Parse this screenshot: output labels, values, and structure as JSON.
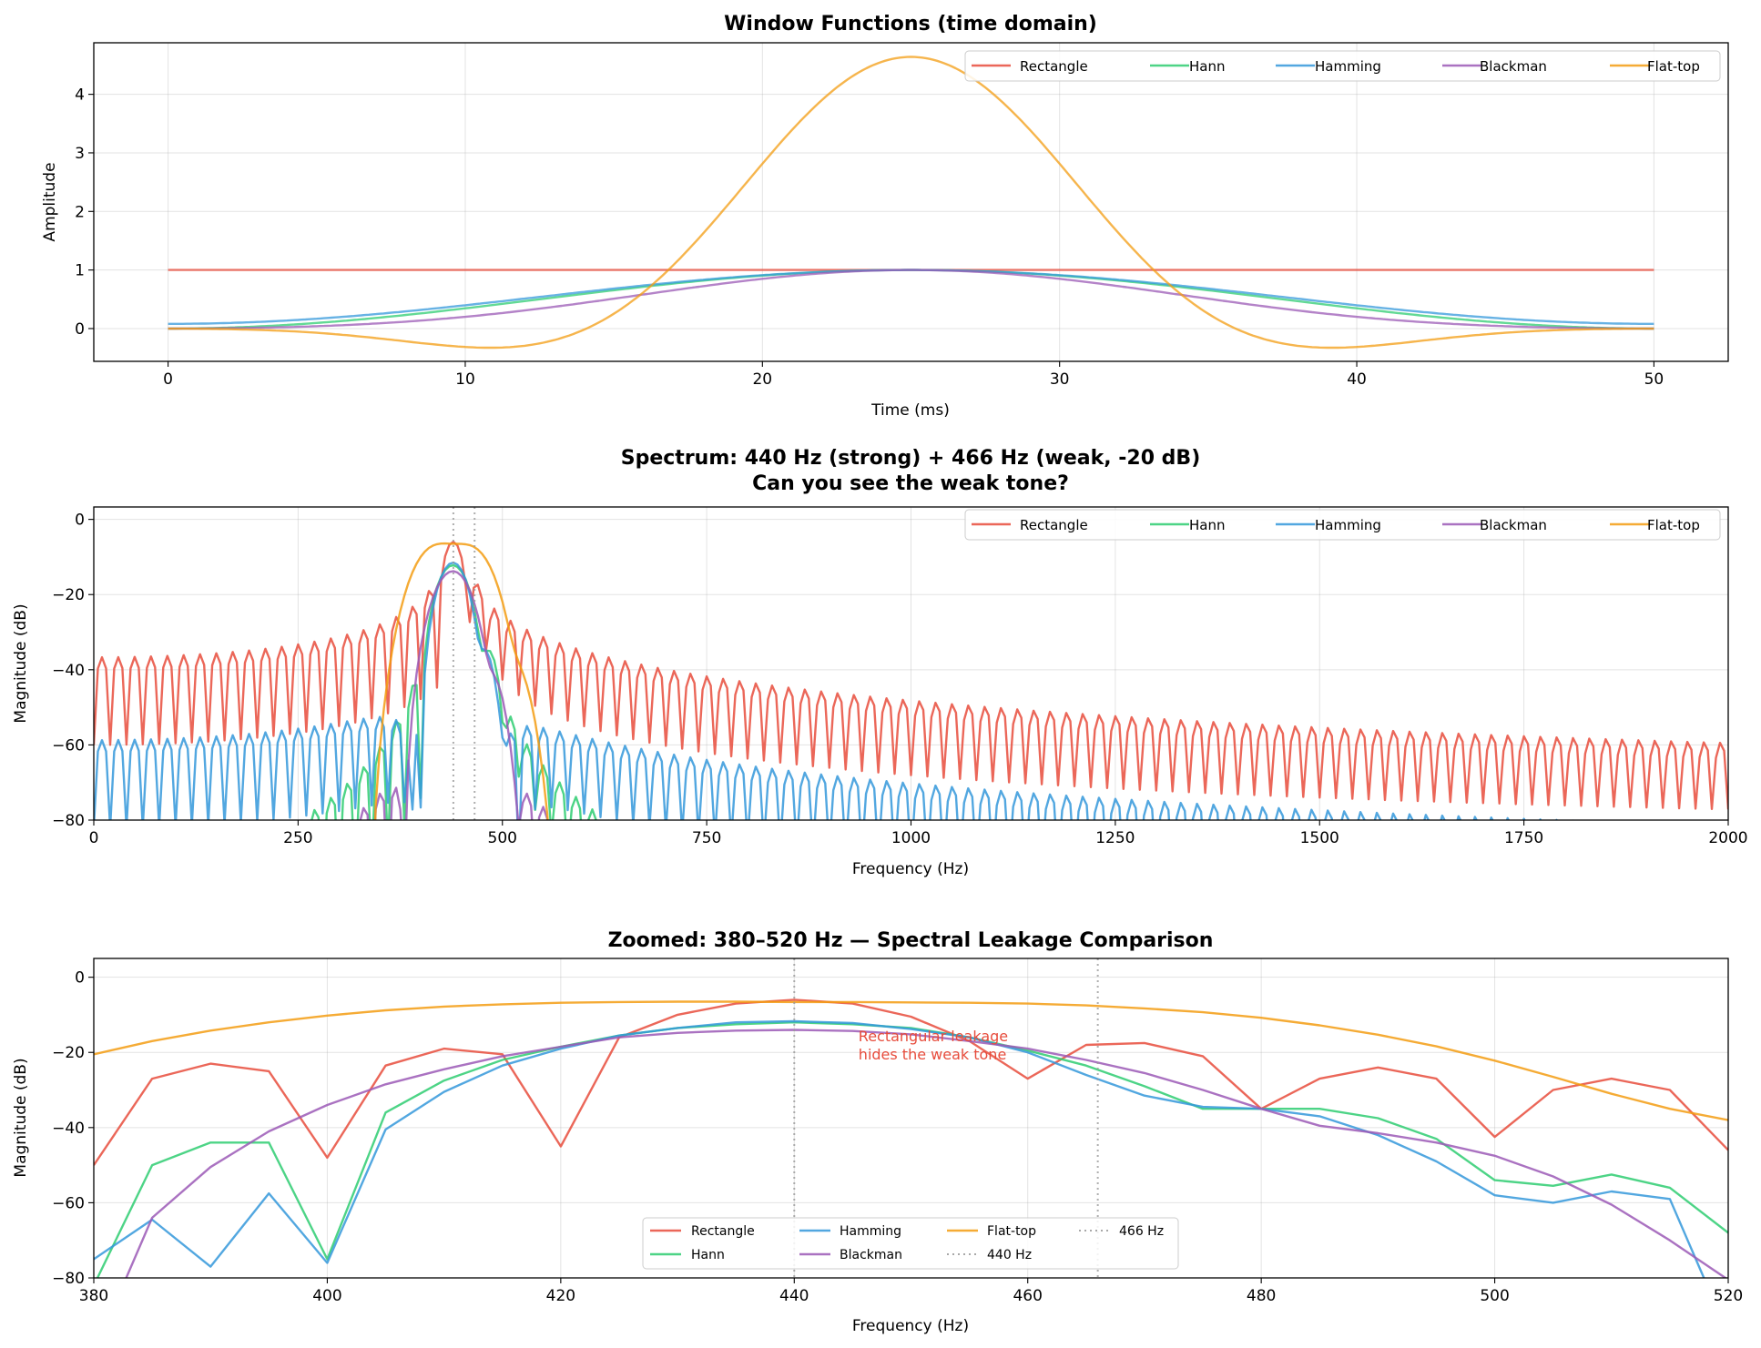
{
  "colors": {
    "Rectangle": "#e74c3c",
    "Hann": "#2ecc71",
    "Hamming": "#3498db",
    "Blackman": "#9b59b6",
    "Flat-top": "#f39c12",
    "marker_lines": "#999999"
  },
  "chart_data": [
    {
      "type": "line",
      "title": "Window Functions (time domain)",
      "xlabel": "Time (ms)",
      "ylabel": "Amplitude",
      "xlim": [
        -2.5,
        52.5
      ],
      "ylim": [
        -0.56,
        4.88
      ],
      "xticks": [
        0,
        10,
        20,
        30,
        40,
        50
      ],
      "xtick_labels": [
        "0",
        "10",
        "20",
        "30",
        "40",
        "50"
      ],
      "yticks": [
        0,
        1,
        2,
        3,
        4
      ],
      "ytick_labels": [
        "0",
        "1",
        "2",
        "3",
        "4"
      ],
      "grid": true,
      "legend": "top-right",
      "x": [
        0,
        5,
        10,
        15,
        20,
        25,
        30,
        35,
        40,
        45,
        50
      ],
      "series": [
        {
          "name": "Rectangle",
          "values": [
            1,
            1,
            1,
            1,
            1,
            1,
            1,
            1,
            1,
            1,
            1
          ]
        },
        {
          "name": "Hann",
          "values": [
            0,
            0.0955,
            0.3455,
            0.6545,
            0.9045,
            1,
            0.9045,
            0.6545,
            0.3455,
            0.0955,
            0
          ]
        },
        {
          "name": "Hamming",
          "values": [
            0.08,
            0.1679,
            0.3979,
            0.6821,
            0.9121,
            1,
            0.9121,
            0.6821,
            0.3979,
            0.1679,
            0.08
          ]
        },
        {
          "name": "Blackman",
          "values": [
            0,
            0.0402,
            0.2008,
            0.5098,
            0.8492,
            1,
            0.8492,
            0.5098,
            0.2008,
            0.0402,
            0
          ]
        },
        {
          "name": "Flat-top",
          "values": [
            -0.002,
            -0.0723,
            -0.3141,
            0.253,
            2.8151,
            4.6387,
            2.8151,
            0.253,
            -0.3141,
            -0.0723,
            -0.002
          ]
        }
      ]
    },
    {
      "type": "line",
      "title": "Spectrum: 440 Hz (strong) + 466 Hz (weak, -20 dB)",
      "subtitle": "Can you see the weak tone?",
      "xlabel": "Frequency (Hz)",
      "ylabel": "Magnitude (dB)",
      "xlim": [
        0,
        2000
      ],
      "ylim": [
        -80,
        3.3
      ],
      "xticks": [
        0,
        250,
        500,
        750,
        1000,
        1250,
        1500,
        1750,
        2000
      ],
      "xtick_labels": [
        "0",
        "250",
        "500",
        "750",
        "1000",
        "1250",
        "1500",
        "1750",
        "2000"
      ],
      "yticks": [
        -80,
        -60,
        -40,
        -20,
        0
      ],
      "ytick_labels": [
        "−80",
        "−60",
        "−40",
        "−20",
        "0"
      ],
      "grid": true,
      "legend": "top-right",
      "signal": {
        "tones_hz": [
          440,
          466
        ],
        "relative_level_db": [
          0,
          -20
        ]
      },
      "vlines_hz": [
        440,
        466
      ],
      "series_names": [
        "Rectangle",
        "Hann",
        "Hamming",
        "Blackman",
        "Flat-top"
      ]
    },
    {
      "type": "line",
      "title": "Zoomed: 380–520 Hz — Spectral Leakage Comparison",
      "xlabel": "Frequency (Hz)",
      "ylabel": "Magnitude (dB)",
      "xlim": [
        380,
        520
      ],
      "ylim": [
        -80,
        5
      ],
      "xticks": [
        380,
        400,
        420,
        440,
        460,
        480,
        500,
        520
      ],
      "xtick_labels": [
        "380",
        "400",
        "420",
        "440",
        "460",
        "480",
        "500",
        "520"
      ],
      "yticks": [
        -80,
        -60,
        -40,
        -20,
        0
      ],
      "ytick_labels": [
        "−80",
        "−60",
        "−40",
        "−20",
        "0"
      ],
      "grid": true,
      "legend": "bottom-center",
      "legend_labels": [
        "Rectangle",
        "Hann",
        "Hamming",
        "Blackman",
        "Flat-top",
        "440 Hz",
        "466 Hz"
      ],
      "annotation": {
        "lines": [
          "Rectangular leakage",
          "hides the weak tone"
        ],
        "x": 445.5,
        "y": -17
      },
      "vlines_hz": [
        440,
        466
      ],
      "x": [
        380,
        385,
        390,
        395,
        400,
        405,
        410,
        415,
        420,
        425,
        430,
        435,
        440,
        445,
        450,
        455,
        460,
        465,
        470,
        475,
        480,
        485,
        490,
        495,
        500,
        505,
        510,
        515,
        520
      ],
      "series": [
        {
          "name": "Rectangle",
          "values": [
            -50,
            -27,
            -23,
            -25,
            -48,
            -23.5,
            -19,
            -20.5,
            -45,
            -16,
            -10,
            -7,
            -6,
            -7,
            -10.5,
            -17,
            -27,
            -18,
            -17.5,
            -21,
            -35,
            -27,
            -24,
            -27,
            -42.5,
            -30,
            -27,
            -30,
            -46
          ]
        },
        {
          "name": "Hann",
          "values": [
            -82,
            -50,
            -44,
            -44,
            -75,
            -36,
            -27.5,
            -22,
            -18.5,
            -15.5,
            -13.5,
            -12.5,
            -12,
            -12.5,
            -13.5,
            -16,
            -19.5,
            -23.5,
            -29,
            -35,
            -35,
            -35,
            -37.5,
            -43,
            -54,
            -55.5,
            -52.5,
            -56,
            -68
          ]
        },
        {
          "name": "Hamming",
          "values": [
            -75,
            -64.5,
            -77,
            -57.5,
            -76,
            -40.5,
            -30.5,
            -23.5,
            -19,
            -15.5,
            -13.5,
            -12,
            -11.7,
            -12.2,
            -13.8,
            -16,
            -20,
            -26,
            -31.5,
            -34.5,
            -35,
            -37,
            -42,
            -49,
            -58,
            -60,
            -57,
            -59,
            -95
          ]
        },
        {
          "name": "Blackman",
          "values": [
            -100,
            -64,
            -50.5,
            -41,
            -34,
            -28.5,
            -24.5,
            -21,
            -18.5,
            -16,
            -14.8,
            -14.2,
            -14,
            -14.3,
            -15.2,
            -17,
            -19,
            -22,
            -25.5,
            -30,
            -35,
            -39.5,
            -41.5,
            -44,
            -47.5,
            -53,
            -60.5,
            -70,
            -80.5
          ]
        },
        {
          "name": "Flat-top",
          "values": [
            -20.5,
            -17,
            -14.2,
            -12,
            -10.2,
            -8.8,
            -7.8,
            -7.2,
            -6.8,
            -6.6,
            -6.5,
            -6.5,
            -6.6,
            -6.6,
            -6.7,
            -6.8,
            -7,
            -7.5,
            -8.3,
            -9.3,
            -10.8,
            -12.8,
            -15.3,
            -18.4,
            -22.2,
            -26.5,
            -31,
            -35,
            -38
          ]
        }
      ]
    }
  ]
}
